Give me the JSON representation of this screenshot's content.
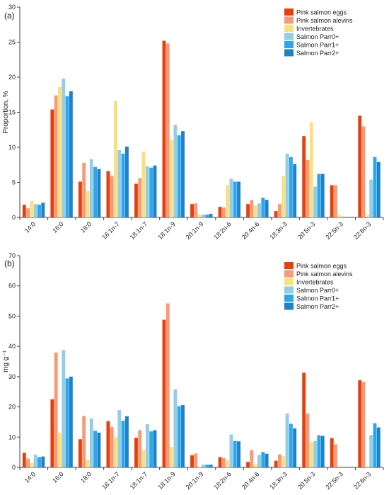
{
  "chart_data": [
    {
      "type": "bar",
      "panel_label": "(a)",
      "title": "",
      "xlabel": "",
      "ylabel": "Proportion, %",
      "ylim": [
        0,
        30
      ],
      "yticks": [
        0,
        5,
        10,
        15,
        20,
        25,
        30
      ],
      "legend_position": "top-right",
      "grid": false,
      "categories": [
        "14:0",
        "16:0",
        "18:0",
        "16:1n-7",
        "18:1n-7",
        "18:1n-9",
        "20:1n-9",
        "18:2n-6",
        "20:4n-6",
        "18:3n-3",
        "20:5n-3",
        "22:5n-3",
        "22:6n-3"
      ],
      "series": [
        {
          "name": "Pink salmon eggs",
          "color": "#E8400C",
          "values": [
            1.8,
            15.4,
            5.1,
            6.6,
            4.8,
            25.2,
            1.9,
            1.5,
            1.9,
            0.9,
            11.6,
            4.6,
            14.5
          ]
        },
        {
          "name": "Pink salmon alevins",
          "color": "#F79A78",
          "values": [
            1.3,
            17.4,
            7.8,
            5.9,
            5.6,
            24.8,
            2.0,
            1.4,
            2.5,
            1.9,
            8.2,
            4.6,
            13.0
          ]
        },
        {
          "name": "Invertebrates",
          "color": "#FAE17E",
          "values": [
            2.4,
            18.6,
            3.8,
            16.6,
            9.4,
            11.1,
            0.4,
            4.6,
            1.7,
            5.9,
            13.6,
            0.3,
            0.3
          ]
        },
        {
          "name": "Salmon Parr0+",
          "color": "#93CDE8",
          "values": [
            1.9,
            19.8,
            8.3,
            9.6,
            7.3,
            13.2,
            0.4,
            5.5,
            2.0,
            9.1,
            4.4,
            0.0,
            5.4
          ]
        },
        {
          "name": "Salmon Parr1+",
          "color": "#2EA6E8",
          "values": [
            1.8,
            17.3,
            7.2,
            9.1,
            7.1,
            11.7,
            0.4,
            5.1,
            2.8,
            8.6,
            6.2,
            0.0,
            8.6
          ]
        },
        {
          "name": "Salmon Parr2+",
          "color": "#1E82C8",
          "values": [
            2.1,
            18.0,
            6.9,
            10.1,
            7.4,
            12.3,
            0.5,
            5.1,
            2.5,
            7.6,
            6.2,
            0.0,
            7.9
          ]
        }
      ]
    },
    {
      "type": "bar",
      "panel_label": "(b)",
      "title": "",
      "xlabel": "",
      "ylabel": "mg g⁻¹",
      "ylim": [
        0,
        70
      ],
      "yticks": [
        0,
        10,
        20,
        30,
        40,
        50,
        60,
        70
      ],
      "legend_position": "top-right",
      "grid": false,
      "categories": [
        "14:0",
        "16:0",
        "18:0",
        "16:1n-7",
        "18:1n-7",
        "18:1n-9",
        "20:1n-9",
        "18:2n-6",
        "20:4n-6",
        "18:3n-3",
        "20:5n-3",
        "22:5n-3",
        "22:6n-3"
      ],
      "series": [
        {
          "name": "Pink salmon eggs",
          "color": "#E8400C",
          "values": [
            4.8,
            22.5,
            9.3,
            15.3,
            9.8,
            48.8,
            4.0,
            3.4,
            1.8,
            2.2,
            31.3,
            9.7,
            28.8
          ]
        },
        {
          "name": "Pink salmon alevins",
          "color": "#F79A78",
          "values": [
            2.9,
            38.0,
            17.0,
            13.3,
            12.3,
            54.2,
            4.6,
            3.1,
            5.7,
            4.3,
            17.8,
            7.6,
            28.3
          ]
        },
        {
          "name": "Invertebrates",
          "color": "#FAE17E",
          "values": [
            1.4,
            11.4,
            2.6,
            10.0,
            5.8,
            6.8,
            0.3,
            2.3,
            1.1,
            3.7,
            8.4,
            0.0,
            0.3
          ]
        },
        {
          "name": "Salmon Parr0+",
          "color": "#93CDE8",
          "values": [
            4.2,
            38.8,
            16.2,
            18.9,
            14.3,
            25.8,
            0.9,
            10.9,
            4.1,
            17.8,
            8.8,
            0.0,
            10.7
          ]
        },
        {
          "name": "Salmon Parr1+",
          "color": "#2EA6E8",
          "values": [
            3.4,
            29.4,
            12.1,
            15.4,
            11.9,
            20.2,
            0.9,
            8.7,
            5.1,
            14.4,
            10.6,
            0.0,
            14.6
          ]
        },
        {
          "name": "Salmon Parr2+",
          "color": "#1E82C8",
          "values": [
            3.6,
            30.0,
            11.5,
            16.9,
            12.3,
            20.6,
            0.9,
            8.6,
            4.5,
            12.9,
            10.4,
            0.0,
            13.2
          ]
        }
      ]
    }
  ]
}
